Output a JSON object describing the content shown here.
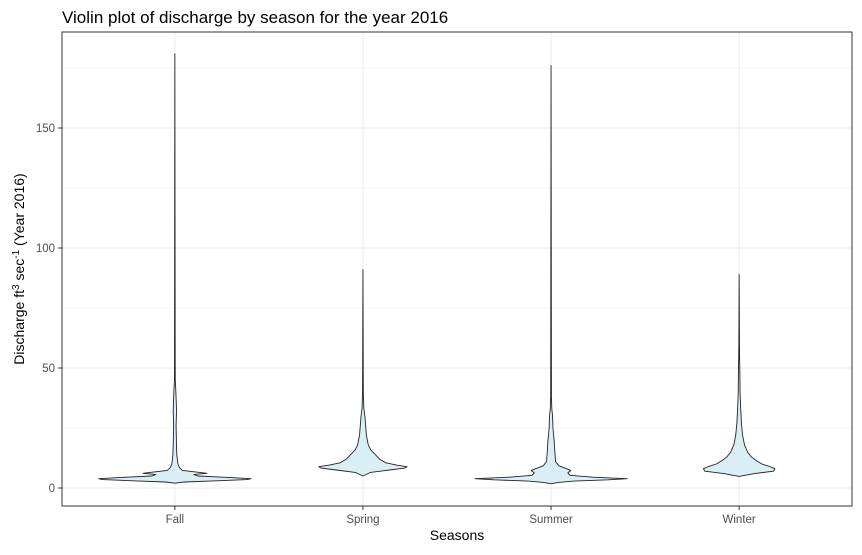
{
  "chart_data": {
    "type": "violin",
    "title": "Violin plot of discharge by season for the year 2016",
    "xlabel": "Seasons",
    "ylabel": {
      "prefix": "Discharge ft",
      "sup1": "3",
      "middle": " sec",
      "sup2": "-1",
      "suffix": " (Year 2016)"
    },
    "categories": [
      "Fall",
      "Spring",
      "Summer",
      "Winter"
    ],
    "yticks": [
      0,
      50,
      100,
      150
    ],
    "ylim": [
      -7.5,
      190
    ],
    "grid": true,
    "fill_color": "#daeef5",
    "stroke_color": "#222222",
    "violins": [
      {
        "category": "Fall",
        "min": 2.0,
        "max": 181,
        "profile": [
          [
            2.0,
            0.0
          ],
          [
            2.5,
            0.12
          ],
          [
            3.0,
            0.55
          ],
          [
            3.5,
            0.95
          ],
          [
            3.9,
            1.0
          ],
          [
            4.4,
            0.7
          ],
          [
            5.0,
            0.3
          ],
          [
            5.6,
            0.25
          ],
          [
            6.1,
            0.42
          ],
          [
            6.6,
            0.3
          ],
          [
            7.3,
            0.1
          ],
          [
            8.5,
            0.06
          ],
          [
            10,
            0.04
          ],
          [
            14,
            0.025
          ],
          [
            20,
            0.02
          ],
          [
            26,
            0.016
          ],
          [
            32,
            0.022
          ],
          [
            36,
            0.018
          ],
          [
            41,
            0.012
          ],
          [
            45,
            0.005
          ],
          [
            60,
            0.004
          ],
          [
            181,
            0.0
          ]
        ]
      },
      {
        "category": "Spring",
        "min": 5.0,
        "max": 91,
        "profile": [
          [
            5.0,
            0.0
          ],
          [
            6.5,
            0.1
          ],
          [
            7.5,
            0.35
          ],
          [
            8.3,
            0.55
          ],
          [
            8.9,
            0.58
          ],
          [
            9.5,
            0.45
          ],
          [
            10.5,
            0.3
          ],
          [
            12,
            0.22
          ],
          [
            14,
            0.16
          ],
          [
            16,
            0.1
          ],
          [
            18,
            0.07
          ],
          [
            22,
            0.045
          ],
          [
            26,
            0.035
          ],
          [
            30,
            0.025
          ],
          [
            33,
            0.012
          ],
          [
            40,
            0.005
          ],
          [
            91,
            0.0
          ]
        ]
      },
      {
        "category": "Summer",
        "min": 1.8,
        "max": 176,
        "profile": [
          [
            1.8,
            0.0
          ],
          [
            2.3,
            0.1
          ],
          [
            2.9,
            0.3
          ],
          [
            3.4,
            0.75
          ],
          [
            3.9,
            1.0
          ],
          [
            4.5,
            0.55
          ],
          [
            5.3,
            0.25
          ],
          [
            6.3,
            0.22
          ],
          [
            7.3,
            0.26
          ],
          [
            8.3,
            0.18
          ],
          [
            9.3,
            0.1
          ],
          [
            11,
            0.06
          ],
          [
            15,
            0.05
          ],
          [
            20,
            0.04
          ],
          [
            25,
            0.025
          ],
          [
            30,
            0.02
          ],
          [
            33,
            0.01
          ],
          [
            38,
            0.005
          ],
          [
            176,
            0.0
          ]
        ]
      },
      {
        "category": "Winter",
        "min": 4.8,
        "max": 89,
        "profile": [
          [
            4.8,
            0.0
          ],
          [
            6.0,
            0.2
          ],
          [
            7.0,
            0.45
          ],
          [
            8.0,
            0.47
          ],
          [
            9.0,
            0.4
          ],
          [
            10,
            0.3
          ],
          [
            11.5,
            0.22
          ],
          [
            13,
            0.16
          ],
          [
            15,
            0.11
          ],
          [
            18,
            0.07
          ],
          [
            22,
            0.045
          ],
          [
            27,
            0.03
          ],
          [
            33,
            0.02
          ],
          [
            40,
            0.012
          ],
          [
            47,
            0.01
          ],
          [
            54,
            0.006
          ],
          [
            60,
            0.004
          ],
          [
            89,
            0.0
          ]
        ]
      }
    ]
  }
}
